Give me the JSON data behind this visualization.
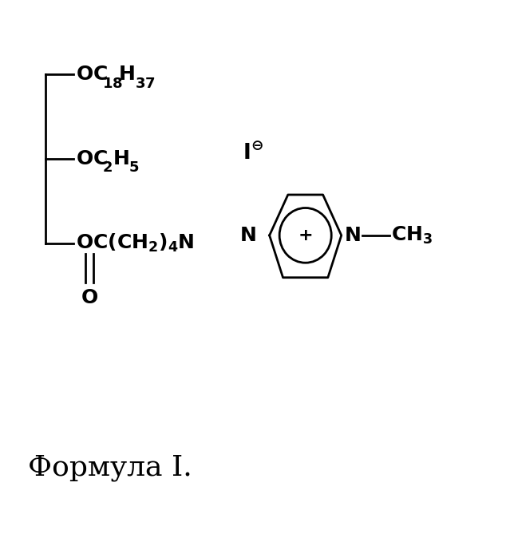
{
  "background_color": "#ffffff",
  "title_text": "Формула I.",
  "title_fontsize": 26,
  "figsize": [
    6.34,
    6.69
  ],
  "dpi": 100
}
